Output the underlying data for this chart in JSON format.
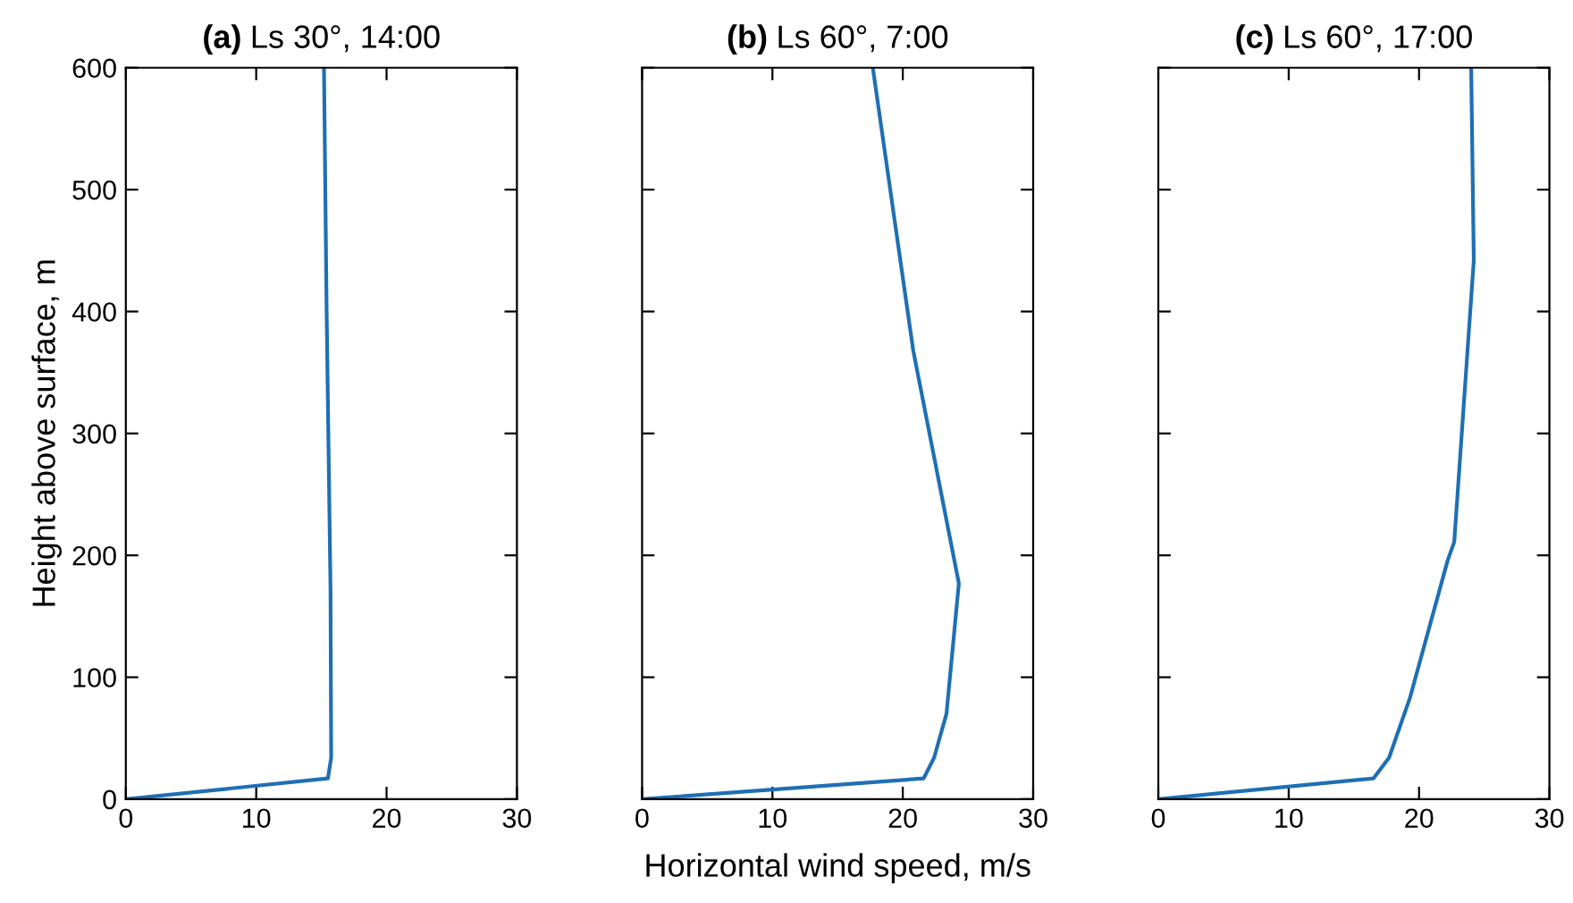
{
  "chart_data": [
    {
      "type": "line",
      "title": "(a) Ls 30°, 14:00",
      "ylabel": "Height above surface, m",
      "xlim": [
        0,
        30
      ],
      "xticks": [
        0,
        10,
        20,
        30
      ],
      "ylim": [
        0,
        600
      ],
      "yticks": [
        0,
        100,
        200,
        300,
        400,
        500,
        600
      ],
      "grid": false,
      "series": [
        {
          "color": "#1f6fb4",
          "x": [
            0,
            15.5,
            15.75,
            15.7,
            15.4,
            15.2
          ],
          "values": [
            0,
            17,
            34,
            172,
            402,
            600
          ]
        }
      ]
    },
    {
      "type": "line",
      "title": "(b) Ls 60°, 7:00",
      "xlabel": "Horizontal wind speed, m/s",
      "xlim": [
        0,
        30
      ],
      "xticks": [
        0,
        10,
        20,
        30
      ],
      "ylim": [
        0,
        600
      ],
      "yticks": [
        0,
        100,
        200,
        300,
        400,
        500,
        600
      ],
      "grid": false,
      "tick_labels": "x",
      "series": [
        {
          "color": "#1f6fb4",
          "x": [
            0,
            21.6,
            22.4,
            23.35,
            24.3,
            20.8,
            17.7
          ],
          "values": [
            0,
            17,
            34,
            70,
            177,
            368,
            600
          ]
        }
      ]
    },
    {
      "type": "line",
      "title": "(c) Ls 60°, 17:00",
      "xlim": [
        0,
        30
      ],
      "xticks": [
        0,
        10,
        20,
        30
      ],
      "ylim": [
        0,
        600
      ],
      "yticks": [
        0,
        100,
        200,
        300,
        400,
        500,
        600
      ],
      "grid": false,
      "tick_labels": "x",
      "series": [
        {
          "color": "#1f6fb4",
          "x": [
            0,
            16.5,
            17.7,
            19.3,
            22.2,
            22.7,
            24.2,
            24.0
          ],
          "values": [
            0,
            17,
            34,
            83,
            196,
            211,
            442,
            600
          ]
        }
      ]
    }
  ]
}
